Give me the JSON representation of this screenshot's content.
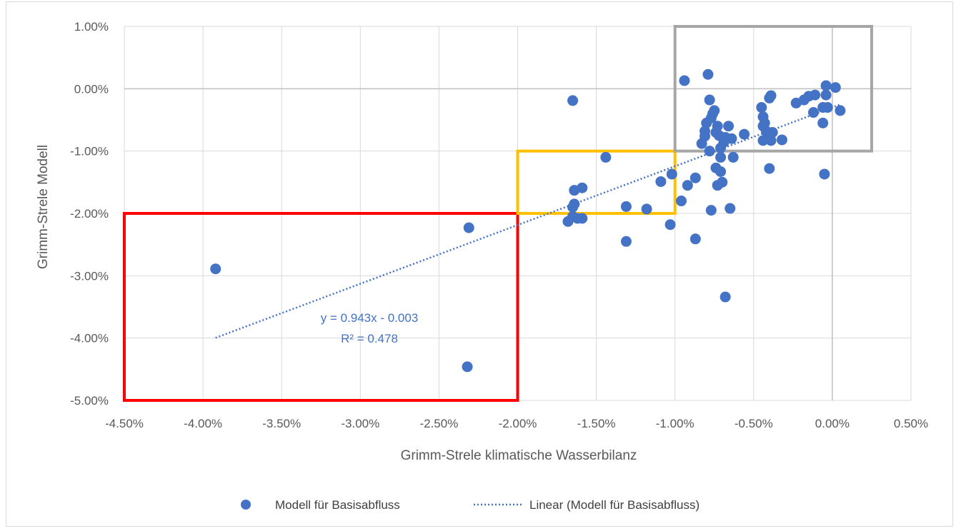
{
  "chart_data": {
    "type": "scatter",
    "title": "",
    "xlabel": "Grimm-Strele klimatische Wasserbilanz",
    "ylabel": "Grimm-Strele Modell",
    "xlim": [
      -0.045,
      0.005
    ],
    "ylim": [
      -0.05,
      0.01
    ],
    "x_ticks": [
      "-4.50%",
      "-4.00%",
      "-3.50%",
      "-3.00%",
      "-2.50%",
      "-2.00%",
      "-1.50%",
      "-1.00%",
      "-0.50%",
      "0.00%",
      "0.50%"
    ],
    "y_ticks": [
      "1.00%",
      "0.00%",
      "-1.00%",
      "-2.00%",
      "-3.00%",
      "-4.00%",
      "-5.00%"
    ],
    "grid": true,
    "legend_position": "bottom",
    "series": [
      {
        "name": "Modell für Basisabfluss",
        "color": "#4472c4",
        "points": [
          [
            -0.0392,
            -0.0289
          ],
          [
            -0.0232,
            -0.0446
          ],
          [
            -0.0231,
            -0.0223
          ],
          [
            -0.0165,
            -0.0019
          ],
          [
            -0.0164,
            -0.0163
          ],
          [
            -0.0164,
            -0.0185
          ],
          [
            -0.0165,
            -0.019
          ],
          [
            -0.0165,
            -0.0205
          ],
          [
            -0.0168,
            -0.0213
          ],
          [
            -0.0162,
            -0.0208
          ],
          [
            -0.0159,
            -0.0159
          ],
          [
            -0.0159,
            -0.0208
          ],
          [
            -0.0144,
            -0.011
          ],
          [
            -0.0131,
            -0.0189
          ],
          [
            -0.0131,
            -0.0245
          ],
          [
            -0.0118,
            -0.0193
          ],
          [
            -0.0109,
            -0.0149
          ],
          [
            -0.0103,
            -0.0218
          ],
          [
            -0.0102,
            -0.0137
          ],
          [
            -0.0096,
            -0.018
          ],
          [
            -0.0092,
            -0.0155
          ],
          [
            -0.0094,
            0.0013
          ],
          [
            -0.0087,
            -0.0143
          ],
          [
            -0.0087,
            -0.0241
          ],
          [
            -0.0083,
            -0.0088
          ],
          [
            -0.0081,
            -0.0076
          ],
          [
            -0.0081,
            -0.0068
          ],
          [
            -0.008,
            -0.0055
          ],
          [
            -0.0079,
            0.0023
          ],
          [
            -0.0078,
            -0.0018
          ],
          [
            -0.0078,
            -0.01
          ],
          [
            -0.0077,
            -0.0195
          ],
          [
            -0.0077,
            -0.0047
          ],
          [
            -0.0076,
            -0.004
          ],
          [
            -0.0075,
            -0.0035
          ],
          [
            -0.0074,
            -0.007
          ],
          [
            -0.0074,
            -0.0127
          ],
          [
            -0.0073,
            -0.006
          ],
          [
            -0.0073,
            -0.0155
          ],
          [
            -0.0072,
            -0.0075
          ],
          [
            -0.0071,
            -0.0095
          ],
          [
            -0.0071,
            -0.011
          ],
          [
            -0.0071,
            -0.0133
          ],
          [
            -0.007,
            -0.015
          ],
          [
            -0.0069,
            -0.0086
          ],
          [
            -0.0068,
            -0.0078
          ],
          [
            -0.0068,
            -0.0334
          ],
          [
            -0.0066,
            -0.006
          ],
          [
            -0.0065,
            -0.0192
          ],
          [
            -0.0064,
            -0.008
          ],
          [
            -0.0063,
            -0.011
          ],
          [
            -0.0056,
            -0.0073
          ],
          [
            -0.0045,
            -0.003
          ],
          [
            -0.0044,
            -0.0045
          ],
          [
            -0.0044,
            -0.006
          ],
          [
            -0.0044,
            -0.0083
          ],
          [
            -0.0043,
            -0.0055
          ],
          [
            -0.0042,
            -0.0068
          ],
          [
            -0.0041,
            -0.0075
          ],
          [
            -0.004,
            -0.0015
          ],
          [
            -0.004,
            -0.0128
          ],
          [
            -0.0039,
            -0.0011
          ],
          [
            -0.0039,
            -0.0083
          ],
          [
            -0.0038,
            -0.007
          ],
          [
            -0.0032,
            -0.0082
          ],
          [
            -0.0023,
            -0.0023
          ],
          [
            -0.0018,
            -0.0018
          ],
          [
            -0.0015,
            -0.0012
          ],
          [
            -0.0012,
            -0.0038
          ],
          [
            -0.0011,
            -0.001
          ],
          [
            -0.0006,
            -0.003
          ],
          [
            -0.0006,
            -0.0055
          ],
          [
            -0.0005,
            -0.0137
          ],
          [
            -0.0004,
            0.0005
          ],
          [
            -0.0004,
            -0.001
          ],
          [
            -0.0003,
            -0.003
          ],
          [
            0.0002,
            0.0002
          ],
          [
            0.0005,
            -0.0035
          ]
        ]
      }
    ],
    "trendline": {
      "name": "Linear (Modell für Basisabfluss)",
      "type": "linear",
      "slope": 0.943,
      "intercept": -0.003,
      "x_range": [
        -0.0392,
        0.0005
      ],
      "color": "#4472c4",
      "style": "dotted",
      "equation_label": "y = 0.943x - 0.003",
      "r2_label": "R² = 0.478"
    },
    "annotation_boxes": [
      {
        "color": "#ff0000",
        "x": [
          -0.045,
          -0.02
        ],
        "y": [
          -0.05,
          -0.02
        ]
      },
      {
        "color": "#ffc000",
        "x": [
          -0.02,
          -0.01
        ],
        "y": [
          -0.02,
          -0.01
        ]
      },
      {
        "color": "#a6a6a6",
        "x": [
          -0.01,
          0.0025
        ],
        "y": [
          -0.01,
          0.01
        ]
      }
    ]
  }
}
